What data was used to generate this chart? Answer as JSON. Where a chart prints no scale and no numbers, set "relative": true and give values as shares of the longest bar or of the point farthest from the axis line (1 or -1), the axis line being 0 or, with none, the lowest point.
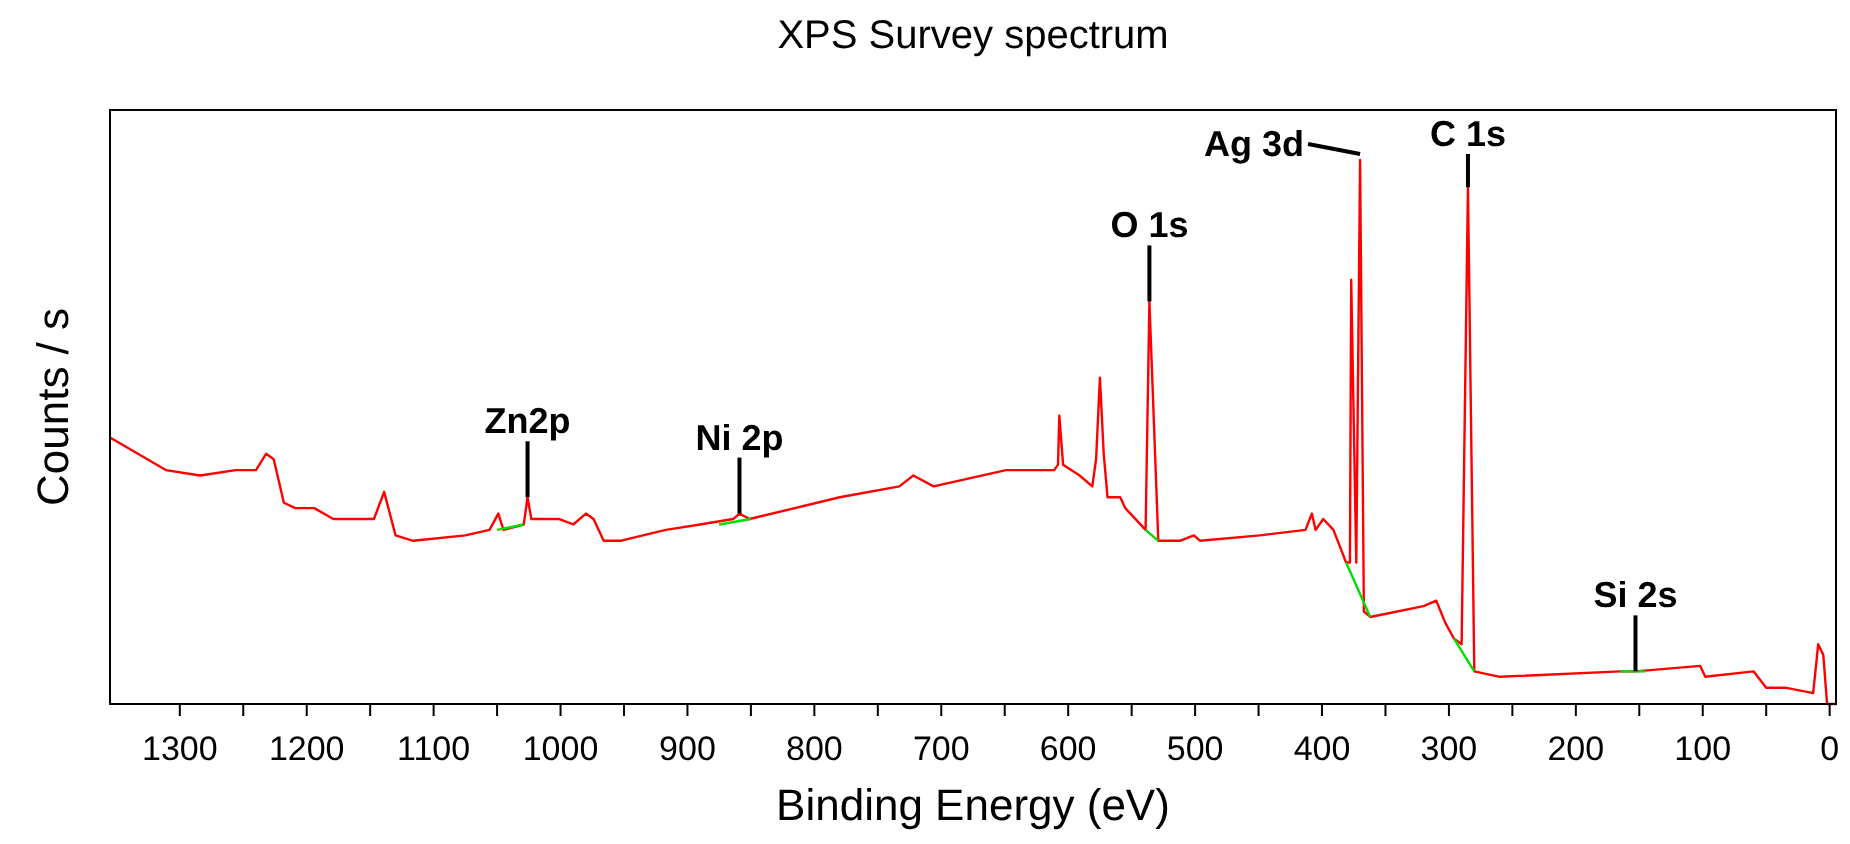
{
  "chart_data": {
    "type": "line",
    "title": "XPS Survey spectrum",
    "xlabel": "Binding Energy (eV)",
    "ylabel": "Counts / s",
    "relative": true,
    "xlim": [
      1355,
      -5
    ],
    "xticks": [
      1300,
      {
        "value": 1250,
        "label": null
      },
      1200,
      {
        "value": 1150,
        "label": null
      },
      1100,
      {
        "value": 1050,
        "label": null
      },
      1000,
      {
        "value": 950,
        "label": null
      },
      900,
      {
        "value": 850,
        "label": null
      },
      800,
      {
        "value": 750,
        "label": null
      },
      700,
      {
        "value": 650,
        "label": null
      },
      600,
      {
        "value": 550,
        "label": null
      },
      500,
      {
        "value": 450,
        "label": null
      },
      400,
      {
        "value": 350,
        "label": null
      },
      300,
      {
        "value": 250,
        "label": null
      },
      200,
      {
        "value": 150,
        "label": null
      },
      100,
      {
        "value": 50,
        "label": null
      },
      0
    ],
    "series": [
      {
        "color": "#ff0000",
        "x": [
          1355,
          1311,
          1284,
          1256,
          1240,
          1232,
          1226,
          1218,
          1209,
          1194,
          1179,
          1161,
          1147,
          1139,
          1130,
          1116,
          1075,
          1056,
          1049,
          1045,
          1029,
          1026,
          1023,
          1001,
          990,
          980,
          974,
          966,
          953,
          917,
          890,
          864,
          859,
          851,
          780,
          733,
          722,
          706,
          649,
          630,
          611,
          608,
          607,
          604,
          591,
          581,
          578,
          575,
          572,
          569,
          559,
          555,
          539,
          536,
          529,
          512,
          501,
          496,
          449,
          413,
          408,
          405,
          399,
          391,
          381,
          378,
          377,
          373,
          370,
          367,
          362,
          320,
          310,
          303,
          296,
          290,
          285,
          280,
          260,
          165,
          153,
          102,
          98,
          60,
          50,
          35,
          13,
          9,
          5,
          2,
          -5
        ],
        "values": [
          0.49,
          0.43,
          0.42,
          0.43,
          0.43,
          0.46,
          0.45,
          0.37,
          0.36,
          0.36,
          0.34,
          0.34,
          0.34,
          0.39,
          0.31,
          0.3,
          0.31,
          0.32,
          0.35,
          0.32,
          0.33,
          0.38,
          0.34,
          0.34,
          0.33,
          0.35,
          0.34,
          0.3,
          0.3,
          0.32,
          0.33,
          0.34,
          0.35,
          0.34,
          0.38,
          0.4,
          0.42,
          0.4,
          0.43,
          0.43,
          0.43,
          0.44,
          0.53,
          0.44,
          0.42,
          0.4,
          0.45,
          0.6,
          0.46,
          0.38,
          0.38,
          0.36,
          0.32,
          0.74,
          0.3,
          0.3,
          0.31,
          0.3,
          0.31,
          0.32,
          0.35,
          0.32,
          0.34,
          0.32,
          0.26,
          0.26,
          0.78,
          0.26,
          1.0,
          0.17,
          0.16,
          0.18,
          0.19,
          0.15,
          0.12,
          0.11,
          0.95,
          0.06,
          0.05,
          0.06,
          0.06,
          0.07,
          0.05,
          0.06,
          0.03,
          0.03,
          0.02,
          0.11,
          0.09,
          0,
          0
        ]
      },
      {
        "color": "#00dd00",
        "x": [
          1050,
          1029,
          1000,
          875,
          850,
          820,
          539,
          529,
          500,
          381,
          362,
          340,
          296,
          280,
          250,
          165,
          145
        ],
        "values": [
          0.32,
          0.33,
          null,
          0.33,
          0.34,
          null,
          0.32,
          0.3,
          null,
          0.26,
          0.16,
          null,
          0.12,
          0.06,
          null,
          0.06,
          0.06
        ]
      }
    ],
    "annotations": [
      {
        "text": "Zn2p",
        "x": 1026,
        "y": 0.38
      },
      {
        "text": "Ni 2p",
        "x": 859,
        "y": 0.35
      },
      {
        "text": "O 1s",
        "x": 536,
        "y": 0.74
      },
      {
        "text": "Ag 3d",
        "x": 370,
        "y": 1.0
      },
      {
        "text": "C 1s",
        "x": 285,
        "y": 0.95
      },
      {
        "text": "Si 2s",
        "x": 153,
        "y": 0.06
      }
    ],
    "grid": false
  }
}
